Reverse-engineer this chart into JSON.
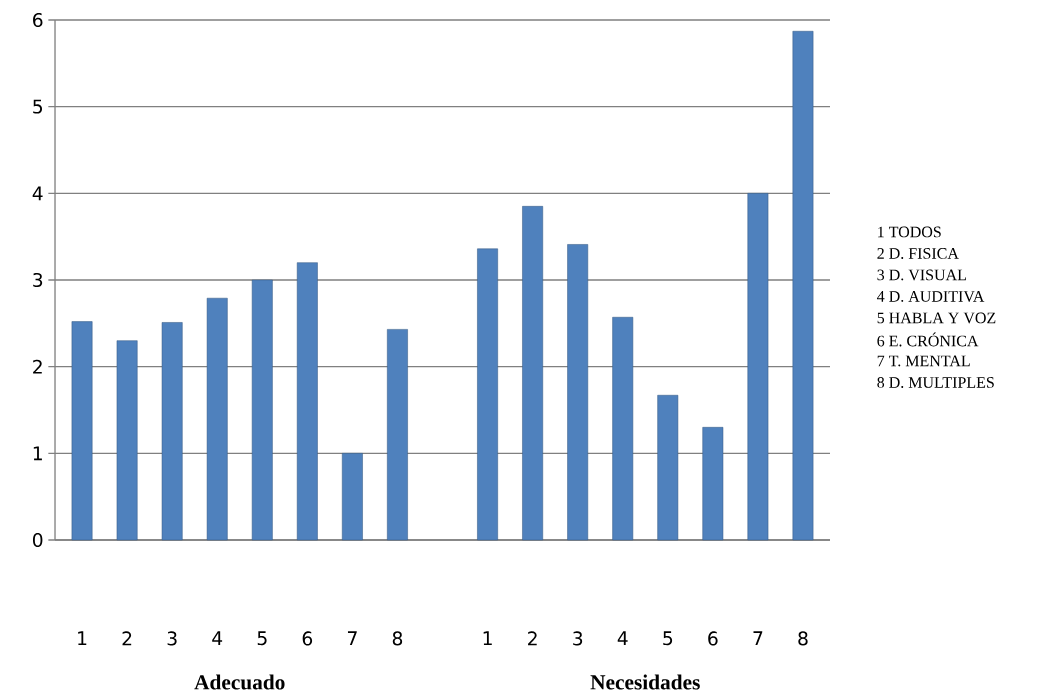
{
  "chart_data": {
    "type": "bar",
    "categories": [
      "1",
      "2",
      "3",
      "4",
      "5",
      "6",
      "7",
      "8",
      null,
      "1",
      "2",
      "3",
      "4",
      "5",
      "6",
      "7",
      "8"
    ],
    "values": [
      2.52,
      2.3,
      2.51,
      2.79,
      3.0,
      3.2,
      1.0,
      2.43,
      null,
      3.36,
      3.85,
      3.41,
      2.57,
      1.67,
      1.3,
      4.0,
      5.87
    ],
    "color": "#4f81bd",
    "ylim": [
      0,
      6
    ],
    "yticks": [
      0,
      1,
      2,
      3,
      4,
      5,
      6
    ],
    "grid": "y",
    "annotations": [
      "Adecuado",
      "Necesidades",
      "1  TODOS",
      "2  D. FISICA",
      "3  D. VISUAL",
      "4  D. AUDITIVA",
      "5  HABLA Y VOZ",
      "6  E. CRÓNICA",
      "7  T. MENTAL",
      "8  D. MULTIPLES"
    ]
  }
}
